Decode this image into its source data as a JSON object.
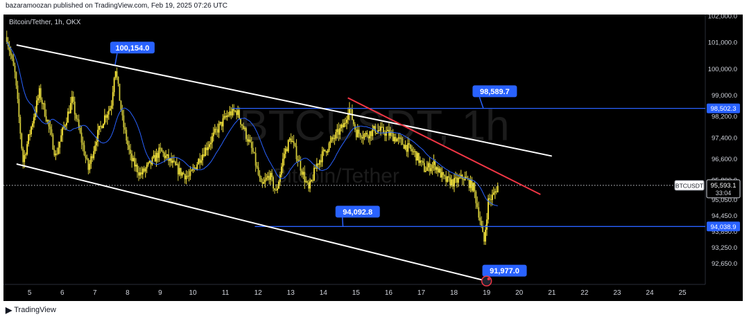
{
  "header": {
    "published_line": "bazaramoozan published on TradingView.com, Feb 19, 2025 07:26 UTC"
  },
  "chart_data": {
    "type": "candlestick",
    "title": "Bitcoin/Tether, 1h, OKX",
    "watermark_symbol": "BTCUSDT, 1h",
    "watermark_name": "Bitcoin/Tether",
    "symbol": "BTCUSDT",
    "timeframe": "1h",
    "exchange": "OKX",
    "x_ticks": [
      "5",
      "6",
      "7",
      "8",
      "9",
      "10",
      "11",
      "12",
      "13",
      "14",
      "15",
      "16",
      "17",
      "18",
      "19",
      "20",
      "21",
      "22",
      "23",
      "24",
      "25"
    ],
    "x_range_days": [
      4.2,
      25.7
    ],
    "y_ticks": [
      "102,000.0",
      "101,000.0",
      "100,000.0",
      "99,000.0",
      "98,200.0",
      "97,400.0",
      "96,600.0",
      "95,800.0",
      "95,050.0",
      "94,450.0",
      "93,850.0",
      "93,250.0",
      "92,650.0"
    ],
    "y_range": [
      91850,
      102050
    ],
    "price_path": [
      [
        4.3,
        101200
      ],
      [
        4.55,
        99800
      ],
      [
        4.8,
        96500
      ],
      [
        5.05,
        97800
      ],
      [
        5.3,
        99100
      ],
      [
        5.55,
        98000
      ],
      [
        5.8,
        96700
      ],
      [
        6.05,
        97800
      ],
      [
        6.3,
        98800
      ],
      [
        6.55,
        97500
      ],
      [
        6.8,
        96200
      ],
      [
        7.05,
        97400
      ],
      [
        7.3,
        98200
      ],
      [
        7.5,
        98600
      ],
      [
        7.62,
        100154
      ],
      [
        7.85,
        98000
      ],
      [
        8.1,
        96600
      ],
      [
        8.4,
        96000
      ],
      [
        8.7,
        96400
      ],
      [
        9.0,
        96900
      ],
      [
        9.3,
        96500
      ],
      [
        9.6,
        96100
      ],
      [
        9.9,
        95900
      ],
      [
        10.2,
        96600
      ],
      [
        10.5,
        97200
      ],
      [
        10.8,
        97800
      ],
      [
        11.1,
        98300
      ],
      [
        11.35,
        98400
      ],
      [
        11.6,
        97600
      ],
      [
        11.85,
        96800
      ],
      [
        12.1,
        95500
      ],
      [
        12.35,
        96000
      ],
      [
        12.55,
        95300
      ],
      [
        12.8,
        96800
      ],
      [
        13.0,
        97400
      ],
      [
        13.3,
        96300
      ],
      [
        13.55,
        95400
      ],
      [
        13.8,
        96400
      ],
      [
        14.1,
        97000
      ],
      [
        14.4,
        97500
      ],
      [
        14.65,
        97900
      ],
      [
        14.78,
        98589.7
      ],
      [
        15.0,
        97600
      ],
      [
        15.3,
        97500
      ],
      [
        15.6,
        97700
      ],
      [
        15.9,
        97600
      ],
      [
        16.2,
        97400
      ],
      [
        16.5,
        97100
      ],
      [
        16.8,
        96800
      ],
      [
        17.1,
        96200
      ],
      [
        17.4,
        96400
      ],
      [
        17.7,
        95800
      ],
      [
        18.0,
        95700
      ],
      [
        18.3,
        95900
      ],
      [
        18.6,
        95500
      ],
      [
        18.8,
        94300
      ],
      [
        18.92,
        93400
      ],
      [
        19.05,
        95000
      ],
      [
        19.2,
        95200
      ],
      [
        19.35,
        95593.1
      ]
    ],
    "current_price": {
      "value": 95593.1,
      "label": "95,593.1",
      "countdown": "33:04",
      "tag": "BTCUSDT"
    },
    "levels": [
      {
        "name": "resistance",
        "value": 98502.3,
        "label": "98,502.3",
        "x_start": 11.2
      },
      {
        "name": "support",
        "value": 94038.9,
        "label": "94,038.9",
        "x_start": 11.9
      }
    ],
    "trendlines": [
      {
        "name": "channel-upper",
        "color": "#ffffff",
        "points": [
          [
            4.6,
            100900
          ],
          [
            21.0,
            96700
          ]
        ]
      },
      {
        "name": "channel-lower",
        "color": "#ffffff",
        "points": [
          [
            4.6,
            96400
          ],
          [
            19.0,
            91977
          ]
        ]
      },
      {
        "name": "descending-resistance",
        "color": "#f23645",
        "points": [
          [
            14.75,
            98900
          ],
          [
            20.65,
            95250
          ]
        ]
      }
    ],
    "callouts": [
      {
        "name": "callout-high",
        "label": "100,154.0",
        "x": 8.15,
        "y": 100800,
        "anchor": [
          7.62,
          100154
        ]
      },
      {
        "name": "callout-level-top",
        "label": "98,589.7",
        "x": 19.25,
        "y": 99150,
        "anchor": [
          18.9,
          98502.3
        ]
      },
      {
        "name": "callout-level-bottom",
        "label": "94,092.8",
        "x": 15.05,
        "y": 94600,
        "anchor": [
          14.6,
          94038.9
        ]
      },
      {
        "name": "callout-target",
        "label": "91,977.0",
        "x": 19.55,
        "y": 92370,
        "anchor": [
          19.0,
          91977
        ]
      }
    ],
    "colors": {
      "background": "#000000",
      "candle_up": "#ffeb3b",
      "candle_down": "#d4cc3a",
      "ma": "#2962ff",
      "level": "#2962ff",
      "trend_red": "#f23645",
      "channel": "#ffffff",
      "label_bg": "#2962ff"
    }
  },
  "footer": {
    "brand": "TradingView"
  }
}
